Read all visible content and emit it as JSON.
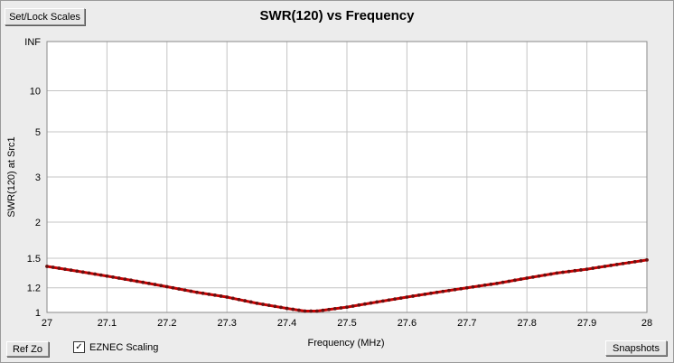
{
  "buttons": {
    "set_lock_scales": "Set/Lock Scales",
    "ref_zo": "Ref Zo",
    "snapshots": "Snapshots"
  },
  "eznec_scaling": {
    "label": "EZNEC Scaling",
    "checked": true,
    "mark": "✓"
  },
  "colors": {
    "background": "#ececec",
    "plot_bg": "#ffffff",
    "grid": "#c4c4c4",
    "series_line": "#cc0000",
    "series_marker": "#661111"
  },
  "chart_data": {
    "type": "line",
    "title": "SWR(120)  vs  Frequency",
    "xlabel": "Frequency (MHz)",
    "ylabel": "SWR(120) at Src1",
    "xlim": [
      27,
      28
    ],
    "x_ticks": [
      "27",
      "27.1",
      "27.2",
      "27.3",
      "27.4",
      "27.5",
      "27.6",
      "27.7",
      "27.8",
      "27.9",
      "28"
    ],
    "y_scale": "swr-reflection",
    "y_ticks": [
      {
        "value": 1,
        "label": "1"
      },
      {
        "value": 1.2,
        "label": "1.2"
      },
      {
        "value": 1.5,
        "label": "1.5"
      },
      {
        "value": 2,
        "label": "2"
      },
      {
        "value": 3,
        "label": "3"
      },
      {
        "value": 5,
        "label": "5"
      },
      {
        "value": 10,
        "label": "10"
      },
      {
        "value": "inf",
        "label": "INF"
      }
    ],
    "grid": true,
    "series": [
      {
        "x": [
          27.0,
          27.05,
          27.1,
          27.15,
          27.2,
          27.25,
          27.3,
          27.35,
          27.4,
          27.43,
          27.45,
          27.5,
          27.55,
          27.6,
          27.65,
          27.7,
          27.75,
          27.8,
          27.85,
          27.9,
          27.95,
          28.0
        ],
        "y": [
          1.41,
          1.36,
          1.31,
          1.26,
          1.21,
          1.16,
          1.12,
          1.07,
          1.03,
          1.01,
          1.01,
          1.04,
          1.08,
          1.12,
          1.16,
          1.2,
          1.24,
          1.29,
          1.34,
          1.38,
          1.43,
          1.48
        ]
      }
    ]
  }
}
